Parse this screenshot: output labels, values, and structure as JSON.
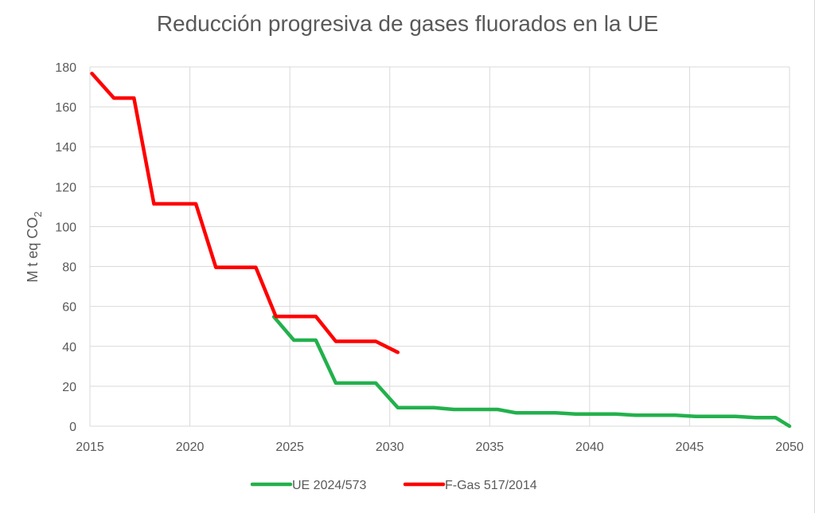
{
  "chart_data": {
    "type": "line",
    "title": "Reducción progresiva de gases fluorados en la UE",
    "ylabel": "M t eq CO",
    "ylabel_subscript": "2",
    "xlabel": "",
    "xlim": [
      2015,
      2050
    ],
    "ylim": [
      0,
      180
    ],
    "x_ticks": [
      "2015",
      "2020",
      "2025",
      "2030",
      "2035",
      "2040",
      "2045",
      "2050"
    ],
    "y_ticks": [
      "0",
      "20",
      "40",
      "60",
      "80",
      "100",
      "120",
      "140",
      "160",
      "180"
    ],
    "grid": true,
    "legend_position": "bottom",
    "series": [
      {
        "name": "UE 2024/573",
        "color": "#22b14c",
        "points": [
          [
            2024.2,
            54.8
          ],
          [
            2025.2,
            43.1
          ],
          [
            2026.3,
            43.1
          ],
          [
            2027.3,
            21.6
          ],
          [
            2029.3,
            21.6
          ],
          [
            2030.4,
            9.3
          ],
          [
            2032.2,
            9.3
          ],
          [
            2033.2,
            8.4
          ],
          [
            2035.4,
            8.4
          ],
          [
            2036.3,
            6.7
          ],
          [
            2038.3,
            6.7
          ],
          [
            2039.3,
            6.1
          ],
          [
            2041.3,
            6.1
          ],
          [
            2042.3,
            5.5
          ],
          [
            2044.3,
            5.5
          ],
          [
            2045.3,
            4.9
          ],
          [
            2047.3,
            4.9
          ],
          [
            2048.3,
            4.3
          ],
          [
            2049.3,
            4.3
          ],
          [
            2050.0,
            0
          ]
        ]
      },
      {
        "name": "F-Gas 517/2014",
        "color": "#ff0000",
        "points": [
          [
            2015.1,
            176.7
          ],
          [
            2016.2,
            164.4
          ],
          [
            2017.2,
            164.4
          ],
          [
            2018.2,
            111.4
          ],
          [
            2020.3,
            111.4
          ],
          [
            2021.3,
            79.6
          ],
          [
            2023.3,
            79.6
          ],
          [
            2024.3,
            55.0
          ],
          [
            2026.3,
            55.0
          ],
          [
            2027.3,
            42.5
          ],
          [
            2029.3,
            42.5
          ],
          [
            2030.4,
            37.0
          ]
        ]
      }
    ]
  }
}
